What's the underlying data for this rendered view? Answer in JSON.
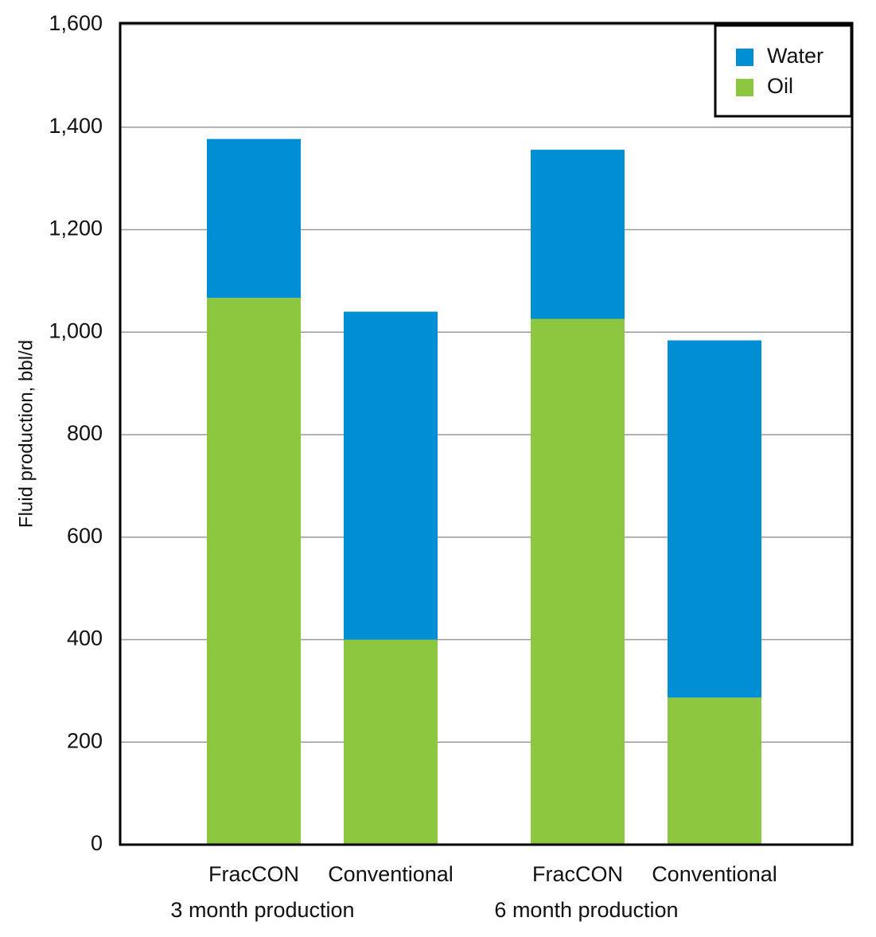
{
  "chart_data": {
    "type": "stacked-bar",
    "y_label": "Fluid production, bbl/d",
    "categories": [
      "FracCON",
      "Conventional",
      "FracCON",
      "Conventional"
    ],
    "groups": [
      "3 month production",
      "6 month production"
    ],
    "series": [
      {
        "name": "Oil",
        "color": "#8dc63f",
        "values": [
          1067,
          400,
          1026,
          287
        ]
      },
      {
        "name": "Water",
        "color": "#008fd5",
        "values": [
          310,
          640,
          330,
          697
        ]
      }
    ],
    "ylim": [
      0,
      1600
    ],
    "yticks": [
      0,
      200,
      400,
      600,
      800,
      {
        "value": 1000,
        "label": "1,000"
      },
      {
        "value": 1200,
        "label": "1,200"
      },
      {
        "value": 1400,
        "label": "1,400"
      },
      {
        "value": 1600,
        "label": "1,600"
      }
    ],
    "grid": true,
    "legend": "top-right"
  }
}
